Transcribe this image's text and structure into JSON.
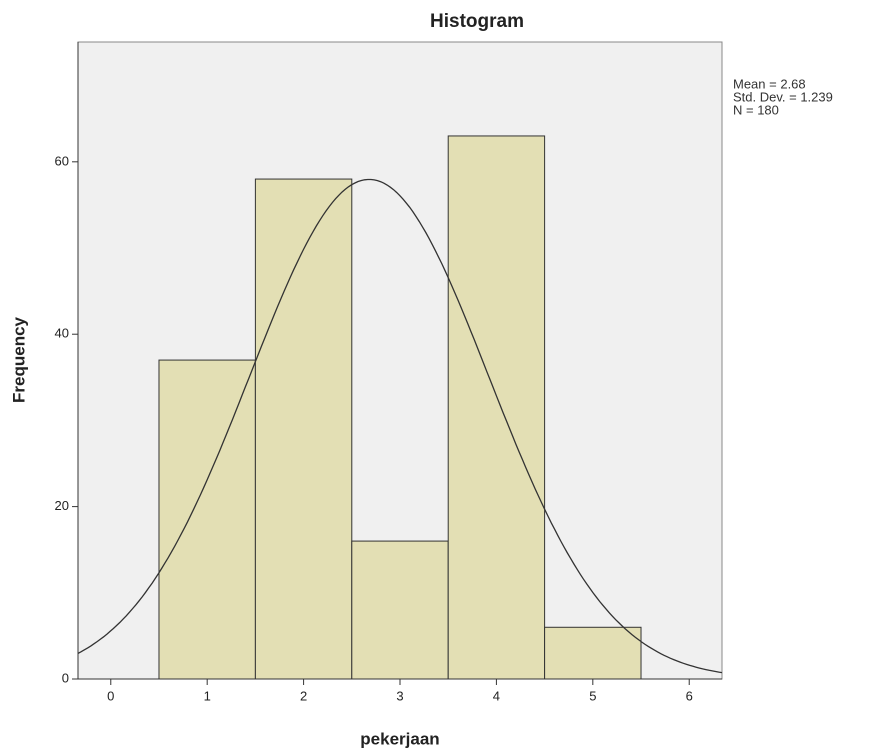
{
  "chart_data": {
    "type": "histogram",
    "title": "Histogram",
    "x_label": "pekerjaan",
    "y_label": "Frequency",
    "bins": [
      0.5,
      1.5,
      2.5,
      3.5,
      4.5,
      5.5
    ],
    "values": [
      37,
      58,
      16,
      63,
      6
    ],
    "color": "#e3dfb4",
    "xlim": [
      -0.34,
      6.34
    ],
    "xticks": [
      0,
      1,
      2,
      3,
      4,
      5,
      6
    ],
    "ylim": [
      0,
      73.9
    ],
    "yticks": [
      0,
      20,
      40,
      60
    ],
    "normal_curve": true,
    "stats": [
      {
        "value": 2.68,
        "label": "Mean = 2.68"
      },
      {
        "value": 1.239,
        "label": "Std. Dev. = 1.239"
      },
      {
        "value": 180,
        "label": "N = 180"
      }
    ]
  }
}
